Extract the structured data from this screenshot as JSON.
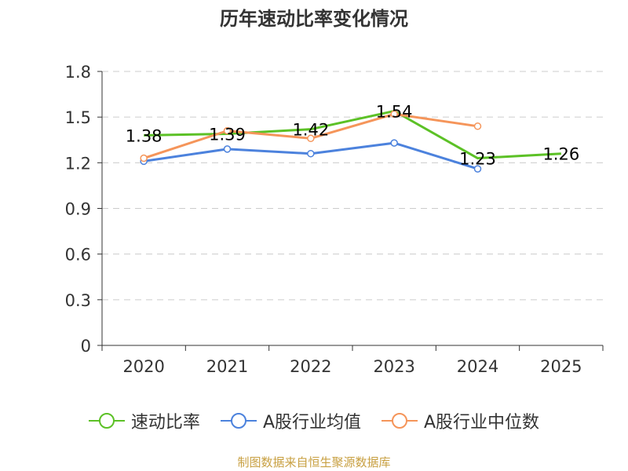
{
  "title": "历年速动比率变化情况",
  "source": "制图数据来自恒生聚源数据库",
  "colors": {
    "green": "#5cc126",
    "blue": "#4c82dd",
    "orange": "#f5955a",
    "axis": "#333333",
    "grid": "#cccccc",
    "source": "#c8a042"
  },
  "chart_data": {
    "type": "line",
    "title": "历年速动比率变化情况",
    "categories": [
      "2020",
      "2021",
      "2022",
      "2023",
      "2024",
      "2025"
    ],
    "ylim": [
      0,
      1.8
    ],
    "yticks": [
      "0",
      "0.3",
      "0.6",
      "0.9",
      "1.2",
      "1.5",
      "1.8"
    ],
    "grid": true,
    "legend_position": "bottom",
    "series": [
      {
        "name": "速动比率",
        "color": "#5cc126",
        "values": [
          1.38,
          1.39,
          1.42,
          1.54,
          1.23,
          1.26
        ],
        "labels": [
          "1.38",
          "1.39",
          "1.42",
          "1.54",
          "1.23",
          "1.26"
        ],
        "show_markers": false
      },
      {
        "name": "A股行业均值",
        "color": "#4c82dd",
        "values": [
          1.21,
          1.29,
          1.26,
          1.33,
          1.16,
          null
        ],
        "show_markers": true
      },
      {
        "name": "A股行业中位数",
        "color": "#f5955a",
        "values": [
          1.23,
          1.41,
          1.36,
          1.52,
          1.44,
          null
        ],
        "show_markers": true
      }
    ]
  }
}
